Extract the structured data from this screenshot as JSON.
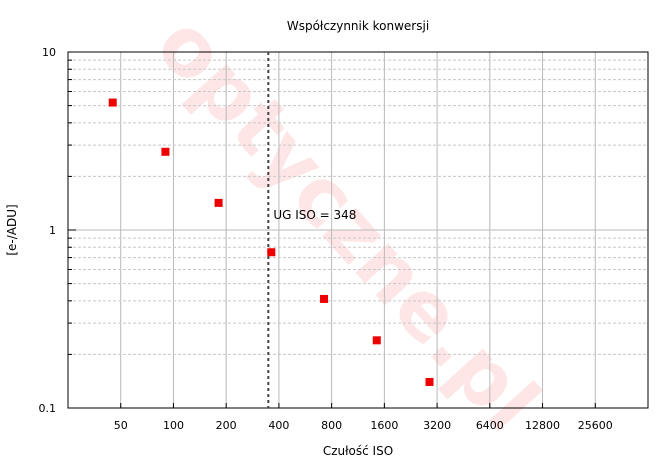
{
  "watermark": "optyczne.pl",
  "colors": {
    "marker": "#ee0000",
    "grid_major": "#b8b8b8",
    "grid_minor": "#c8c8c8",
    "watermark": "#ff3b3b",
    "vline": "#444444"
  },
  "chart_data": {
    "type": "scatter",
    "title": "Współczynnik konwersji",
    "xlabel": "Czułość ISO",
    "ylabel": "[e-/ADU]",
    "x_scale": "log2",
    "y_scale": "log10",
    "xlim": [
      25,
      51200
    ],
    "ylim": [
      0.1,
      10
    ],
    "x_ticks": [
      50,
      100,
      200,
      400,
      800,
      1600,
      3200,
      6400,
      12800,
      25600
    ],
    "x_tick_labels": [
      "50",
      "100",
      "200",
      "400",
      "800",
      "1600",
      "3200",
      "6400",
      "12800",
      "25600"
    ],
    "y_ticks": [
      0.1,
      1,
      10
    ],
    "y_tick_labels": [
      "0.1",
      "1",
      "10"
    ],
    "grid": true,
    "series": [
      {
        "x": [
          45,
          90,
          181,
          362,
          724,
          1448,
          2896
        ],
        "y": [
          5.2,
          2.75,
          1.42,
          0.75,
          0.41,
          0.24,
          0.14
        ]
      }
    ],
    "annotations": [
      {
        "type": "vline",
        "x": 348,
        "style": "dotted",
        "label": "UG ISO = 348"
      }
    ]
  }
}
